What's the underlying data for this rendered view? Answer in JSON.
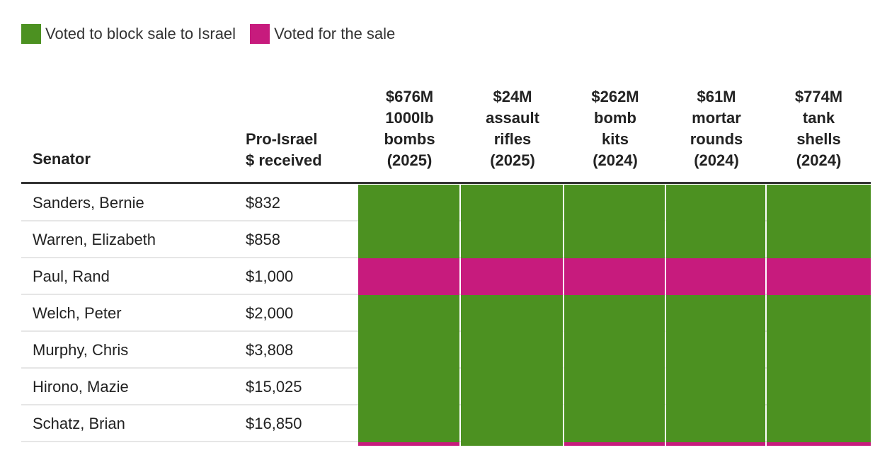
{
  "legend": [
    {
      "label": "Voted to block sale to Israel",
      "color": "#4c9121"
    },
    {
      "label": "Voted for the sale",
      "color": "#c71b7d"
    }
  ],
  "chart_data": {
    "type": "table",
    "columns": {
      "senator": "Senator",
      "pro_israel": [
        "Pro-Israel",
        "$ received"
      ]
    },
    "votes": [
      {
        "lines": [
          "$676M",
          "1000lb",
          "bombs",
          "(2025)"
        ]
      },
      {
        "lines": [
          "$24M",
          "assault",
          "rifles",
          "(2025)"
        ]
      },
      {
        "lines": [
          "$262M",
          "bomb",
          "kits",
          "(2024)"
        ]
      },
      {
        "lines": [
          "$61M",
          "mortar",
          "rounds",
          "(2024)"
        ]
      },
      {
        "lines": [
          "$774M",
          "tank",
          "shells",
          "(2024)"
        ]
      }
    ],
    "rows": [
      {
        "name": "Sanders, Bernie",
        "amount": "$832",
        "votes": [
          "block",
          "block",
          "block",
          "block",
          "block"
        ]
      },
      {
        "name": "Warren, Elizabeth",
        "amount": "$858",
        "votes": [
          "block",
          "block",
          "block",
          "block",
          "block"
        ]
      },
      {
        "name": "Paul, Rand",
        "amount": "$1,000",
        "votes": [
          "for",
          "for",
          "for",
          "for",
          "for"
        ]
      },
      {
        "name": "Welch, Peter",
        "amount": "$2,000",
        "votes": [
          "block",
          "block",
          "block",
          "block",
          "block"
        ]
      },
      {
        "name": "Murphy, Chris",
        "amount": "$3,808",
        "votes": [
          "block",
          "block",
          "block",
          "block",
          "block"
        ]
      },
      {
        "name": "Hirono, Mazie",
        "amount": "$15,025",
        "votes": [
          "block",
          "block",
          "block",
          "block",
          "block"
        ]
      },
      {
        "name": "Schatz, Brian",
        "amount": "$16,850",
        "votes": [
          "block",
          "block",
          "block",
          "block",
          "block"
        ]
      },
      {
        "name": "",
        "amount": "",
        "votes": [
          "for",
          "block",
          "for",
          "for",
          "for"
        ]
      }
    ]
  }
}
